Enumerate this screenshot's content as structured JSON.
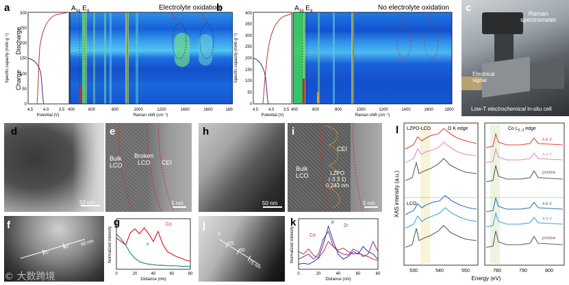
{
  "panels": {
    "a": {
      "label": "a",
      "annotation": "Electrolyte oxidation",
      "peak_label": "A1g Eg",
      "peak_label_main": "A",
      "peak_label_sub": "1g",
      "peak_label_e": " E",
      "peak_label_esub": "g",
      "charge": "Charge",
      "discharge": "Discharge",
      "ylabel": "Specific capacity (mAh g⁻¹)",
      "xlabel_left": "Potential (V)",
      "xlabel_right": "Raman shift (cm⁻¹)",
      "yticks": [
        "0",
        "50",
        "100",
        "150",
        "200",
        "250",
        "300"
      ],
      "pticks": [
        "4.5",
        "4.0",
        "3.5"
      ],
      "rticks": [
        "400",
        "600",
        "800",
        "1000",
        "1200",
        "1400",
        "1600",
        "1800"
      ]
    },
    "b": {
      "label": "b",
      "annotation": "No electrolyte oxidation",
      "peak_label_main": "A",
      "peak_label_sub": "1g",
      "peak_label_e": " E",
      "peak_label_esub": "g",
      "ylabel": "Specific capacity (mAh g⁻¹)",
      "xlabel_left": "Potential (V)",
      "xlabel_right": "Raman shift (cm⁻¹)",
      "yticks": [
        "0",
        "50",
        "100",
        "150",
        "200",
        "250",
        "300",
        "350",
        "400"
      ],
      "pticks": [
        "4.5",
        "4.0",
        "3.5"
      ],
      "rticks": [
        "400",
        "600",
        "800",
        "1000",
        "1200",
        "1400",
        "1600",
        "1800"
      ]
    },
    "c": {
      "label": "c",
      "raman": "Raman\nspectrometer",
      "raman1": "Raman",
      "raman2": "spectrometer",
      "signal1": "Electrical",
      "signal2": "signal",
      "cell_pre": "Low-T ",
      "cell_em": "electrochemical",
      "cell_post": " in-situ cell"
    },
    "d": {
      "label": "d",
      "scale": "50 nm"
    },
    "e": {
      "label": "e",
      "bulk1": "Bulk",
      "bulk2": "LCO",
      "broken1": "Broken",
      "broken2": "LCO",
      "cei": "CEI",
      "scale": "5 nm"
    },
    "f": {
      "label": "f",
      "scale": "60 nm",
      "t20": "20",
      "t40": "40"
    },
    "g": {
      "label": "g",
      "ylabel": "Normalized intensity",
      "xlabel": "Distance (nm)",
      "xticks": [
        "0",
        "20",
        "40",
        "60",
        "80"
      ],
      "legend_co": "Co",
      "legend_f": "F"
    },
    "h": {
      "label": "h",
      "scale": "50 nm"
    },
    "i": {
      "label": "i",
      "bulk1": "Bulk",
      "bulk2": "LCO",
      "cei": "CEI",
      "lzpo": "LZPO",
      "hkl": "(-3 3 1)",
      "dsp": "0.243 nm",
      "scale": "5 nm"
    },
    "j": {
      "label": "j",
      "t0": "0",
      "t25": "25",
      "t50": "50",
      "t75": "75 nm"
    },
    "k": {
      "label": "k",
      "ylabel": "Normalized intensity",
      "xlabel": "Distance (nm)",
      "xticks": [
        "0",
        "20",
        "40",
        "60",
        "80"
      ],
      "legend_co": "Co",
      "legend_f": "F",
      "legend_zr": "Zr"
    },
    "l": {
      "label": "l",
      "title_left": "LZPO-LCO",
      "title_left2": "O K edge",
      "title_right_pre": "Co L",
      "title_right_sub": "2, 3",
      "title_right_post": " edge",
      "group_lco": "LCO",
      "ylabel": "XAS intensity (a.u.)",
      "xlabel": "Energy (eV)",
      "xticks_left": [
        "530",
        "540",
        "550"
      ],
      "xticks_right": [
        "780",
        "790",
        "800"
      ],
      "v46": "4.6 V",
      "v44": "4.4 V",
      "pristine": "pristine"
    }
  },
  "colors": {
    "heat_base": "#1a6fe0",
    "red_curve": "#c0302a",
    "blue_curve": "#2a2a9a",
    "xas_red": "#d9453a",
    "xas_pink": "#e48abf",
    "xas_gray": "#5a5a5a",
    "xas_blue_dark": "#2672b8",
    "xas_blue_light": "#3ca3de",
    "co_red": "#d4252a",
    "f_teal": "#1e8c86"
  },
  "watermark": "© 大数跨境",
  "chart_data": [
    {
      "type": "line",
      "panel": "g",
      "xlabel": "Distance (nm)",
      "ylabel": "Normalized intensity",
      "xlim": [
        0,
        80
      ],
      "series": [
        {
          "name": "Co",
          "x": [
            0,
            5,
            10,
            15,
            20,
            25,
            30,
            35,
            40,
            45,
            50,
            55,
            60,
            65,
            70,
            75,
            80
          ],
          "y": [
            0.62,
            0.55,
            0.48,
            0.72,
            0.8,
            0.7,
            0.82,
            0.7,
            0.55,
            0.75,
            0.5,
            0.35,
            0.3,
            0.25,
            0.22,
            0.18,
            0.16
          ]
        },
        {
          "name": "F",
          "x": [
            0,
            5,
            10,
            15,
            20,
            25,
            30,
            35,
            40,
            45,
            50,
            55,
            60,
            65,
            70,
            75,
            80
          ],
          "y": [
            0.7,
            0.6,
            0.48,
            0.32,
            0.22,
            0.15,
            0.12,
            0.1,
            0.09,
            0.08,
            0.08,
            0.07,
            0.07,
            0.07,
            0.06,
            0.06,
            0.06
          ]
        }
      ]
    },
    {
      "type": "line",
      "panel": "k",
      "xlabel": "Distance (nm)",
      "ylabel": "Normalized intensity",
      "xlim": [
        0,
        80
      ],
      "series": [
        {
          "name": "Co",
          "x": [
            0,
            5,
            10,
            15,
            20,
            25,
            30,
            35,
            40,
            45,
            50,
            55,
            60,
            65,
            70,
            75,
            80
          ],
          "y": [
            0.35,
            0.3,
            0.4,
            0.28,
            0.22,
            0.35,
            0.55,
            0.45,
            0.38,
            0.42,
            0.35,
            0.3,
            0.32,
            0.28,
            0.25,
            0.2,
            0.18
          ]
        },
        {
          "name": "F",
          "x": [
            0,
            5,
            10,
            15,
            20,
            25,
            30,
            35,
            40,
            45,
            50,
            55,
            60,
            65,
            70,
            75,
            80
          ],
          "y": [
            0.1,
            0.12,
            0.1,
            0.15,
            0.22,
            0.5,
            0.85,
            0.55,
            0.3,
            0.2,
            0.25,
            0.35,
            0.3,
            0.45,
            0.35,
            0.3,
            0.2
          ]
        },
        {
          "name": "Zr",
          "x": [
            0,
            5,
            10,
            15,
            20,
            25,
            30,
            35,
            40,
            45,
            50,
            55,
            60,
            65,
            70,
            75,
            80
          ],
          "y": [
            0.2,
            0.25,
            0.3,
            0.2,
            0.3,
            0.6,
            0.75,
            0.45,
            0.35,
            0.3,
            0.28,
            0.4,
            0.35,
            0.25,
            0.3,
            0.55,
            0.35
          ]
        }
      ]
    }
  ]
}
